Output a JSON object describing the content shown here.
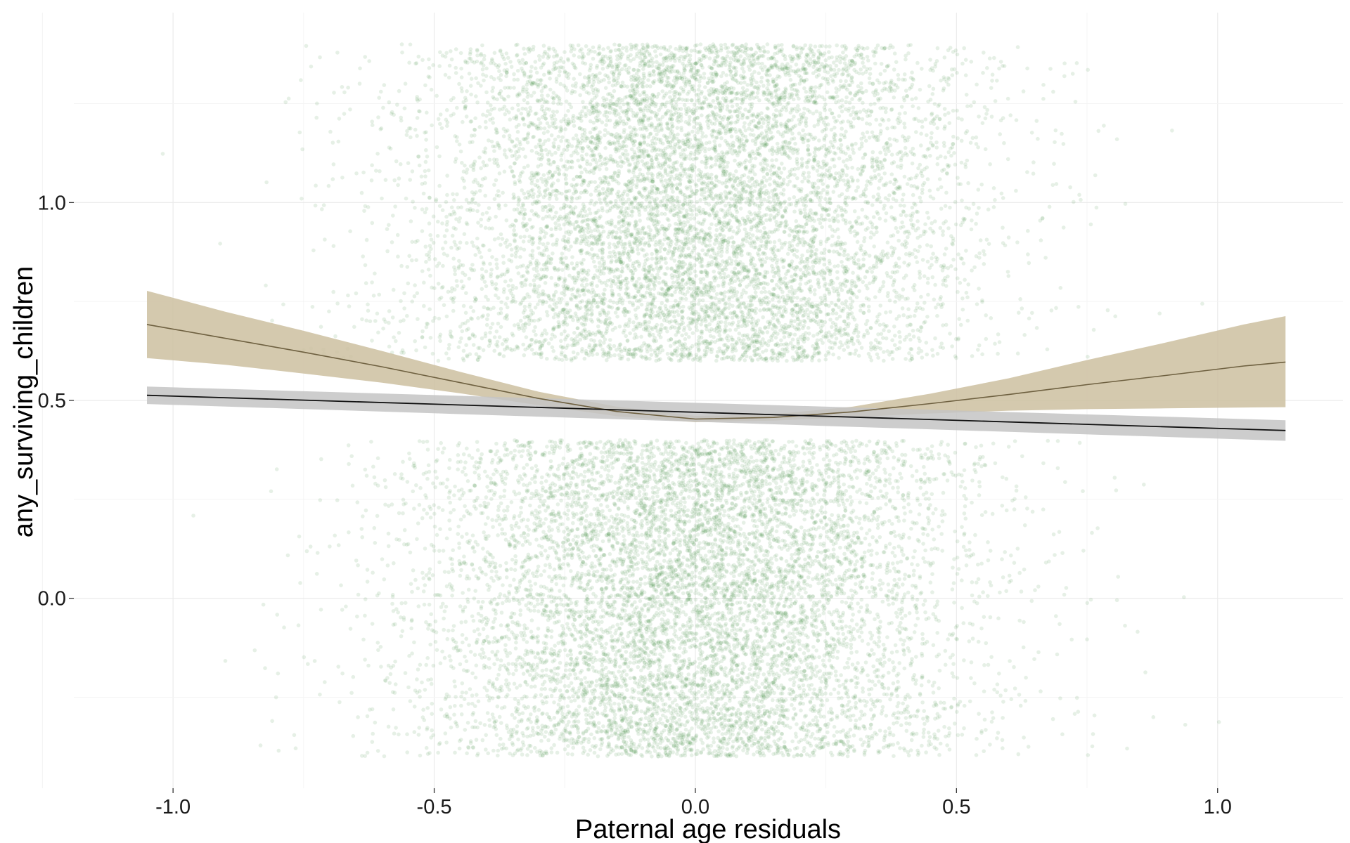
{
  "chart_data": {
    "type": "scatter",
    "title": "",
    "xlabel": "Paternal age residuals",
    "ylabel": "any_surviving_children",
    "xlim": [
      -1.19,
      1.24
    ],
    "ylim": [
      -0.48,
      1.48
    ],
    "x_ticks": [
      -1.0,
      -0.5,
      0.0,
      0.5,
      1.0
    ],
    "x_tick_labels": [
      "-1.0",
      "-0.5",
      "0.0",
      "0.5",
      "1.0"
    ],
    "y_ticks": [
      0.0,
      0.5,
      1.0
    ],
    "y_tick_labels": [
      "0.0",
      "0.5",
      "1.0"
    ],
    "grid": true,
    "legend": "none",
    "points": {
      "description": "jittered binary outcome (0/1 with vertical jitter +/-0.4)",
      "outcome_levels": [
        0,
        1
      ],
      "jitter_height": 0.4,
      "x_center": 0.0,
      "x_spread_sd": 0.26,
      "x_range": [
        -1.03,
        1.12
      ],
      "count_per_level": 9000,
      "color": "#3d8b3d",
      "opacity": 0.13
    },
    "series": [
      {
        "type": "line_with_ribbon",
        "color": "#6e6040",
        "ribbon_color": "#cdbfa0",
        "x": [
          -1.05,
          -0.9,
          -0.75,
          -0.6,
          -0.45,
          -0.3,
          -0.15,
          0.0,
          0.15,
          0.3,
          0.45,
          0.6,
          0.75,
          0.9,
          1.05,
          1.13
        ],
        "y": [
          0.692,
          0.657,
          0.622,
          0.585,
          0.545,
          0.505,
          0.472,
          0.453,
          0.457,
          0.471,
          0.492,
          0.515,
          0.54,
          0.563,
          0.587,
          0.597
        ],
        "lower": [
          0.607,
          0.59,
          0.568,
          0.545,
          0.518,
          0.488,
          0.46,
          0.445,
          0.449,
          0.458,
          0.467,
          0.474,
          0.478,
          0.48,
          0.482,
          0.483
        ],
        "upper": [
          0.777,
          0.724,
          0.676,
          0.625,
          0.572,
          0.522,
          0.484,
          0.461,
          0.465,
          0.484,
          0.517,
          0.556,
          0.602,
          0.646,
          0.692,
          0.713
        ]
      },
      {
        "type": "line_with_ribbon",
        "color": "#111111",
        "ribbon_color": "#c4c4c4",
        "x": [
          -1.05,
          1.13
        ],
        "y": [
          0.513,
          0.424
        ],
        "lower": [
          0.491,
          0.398
        ],
        "upper": [
          0.535,
          0.45
        ]
      }
    ]
  }
}
